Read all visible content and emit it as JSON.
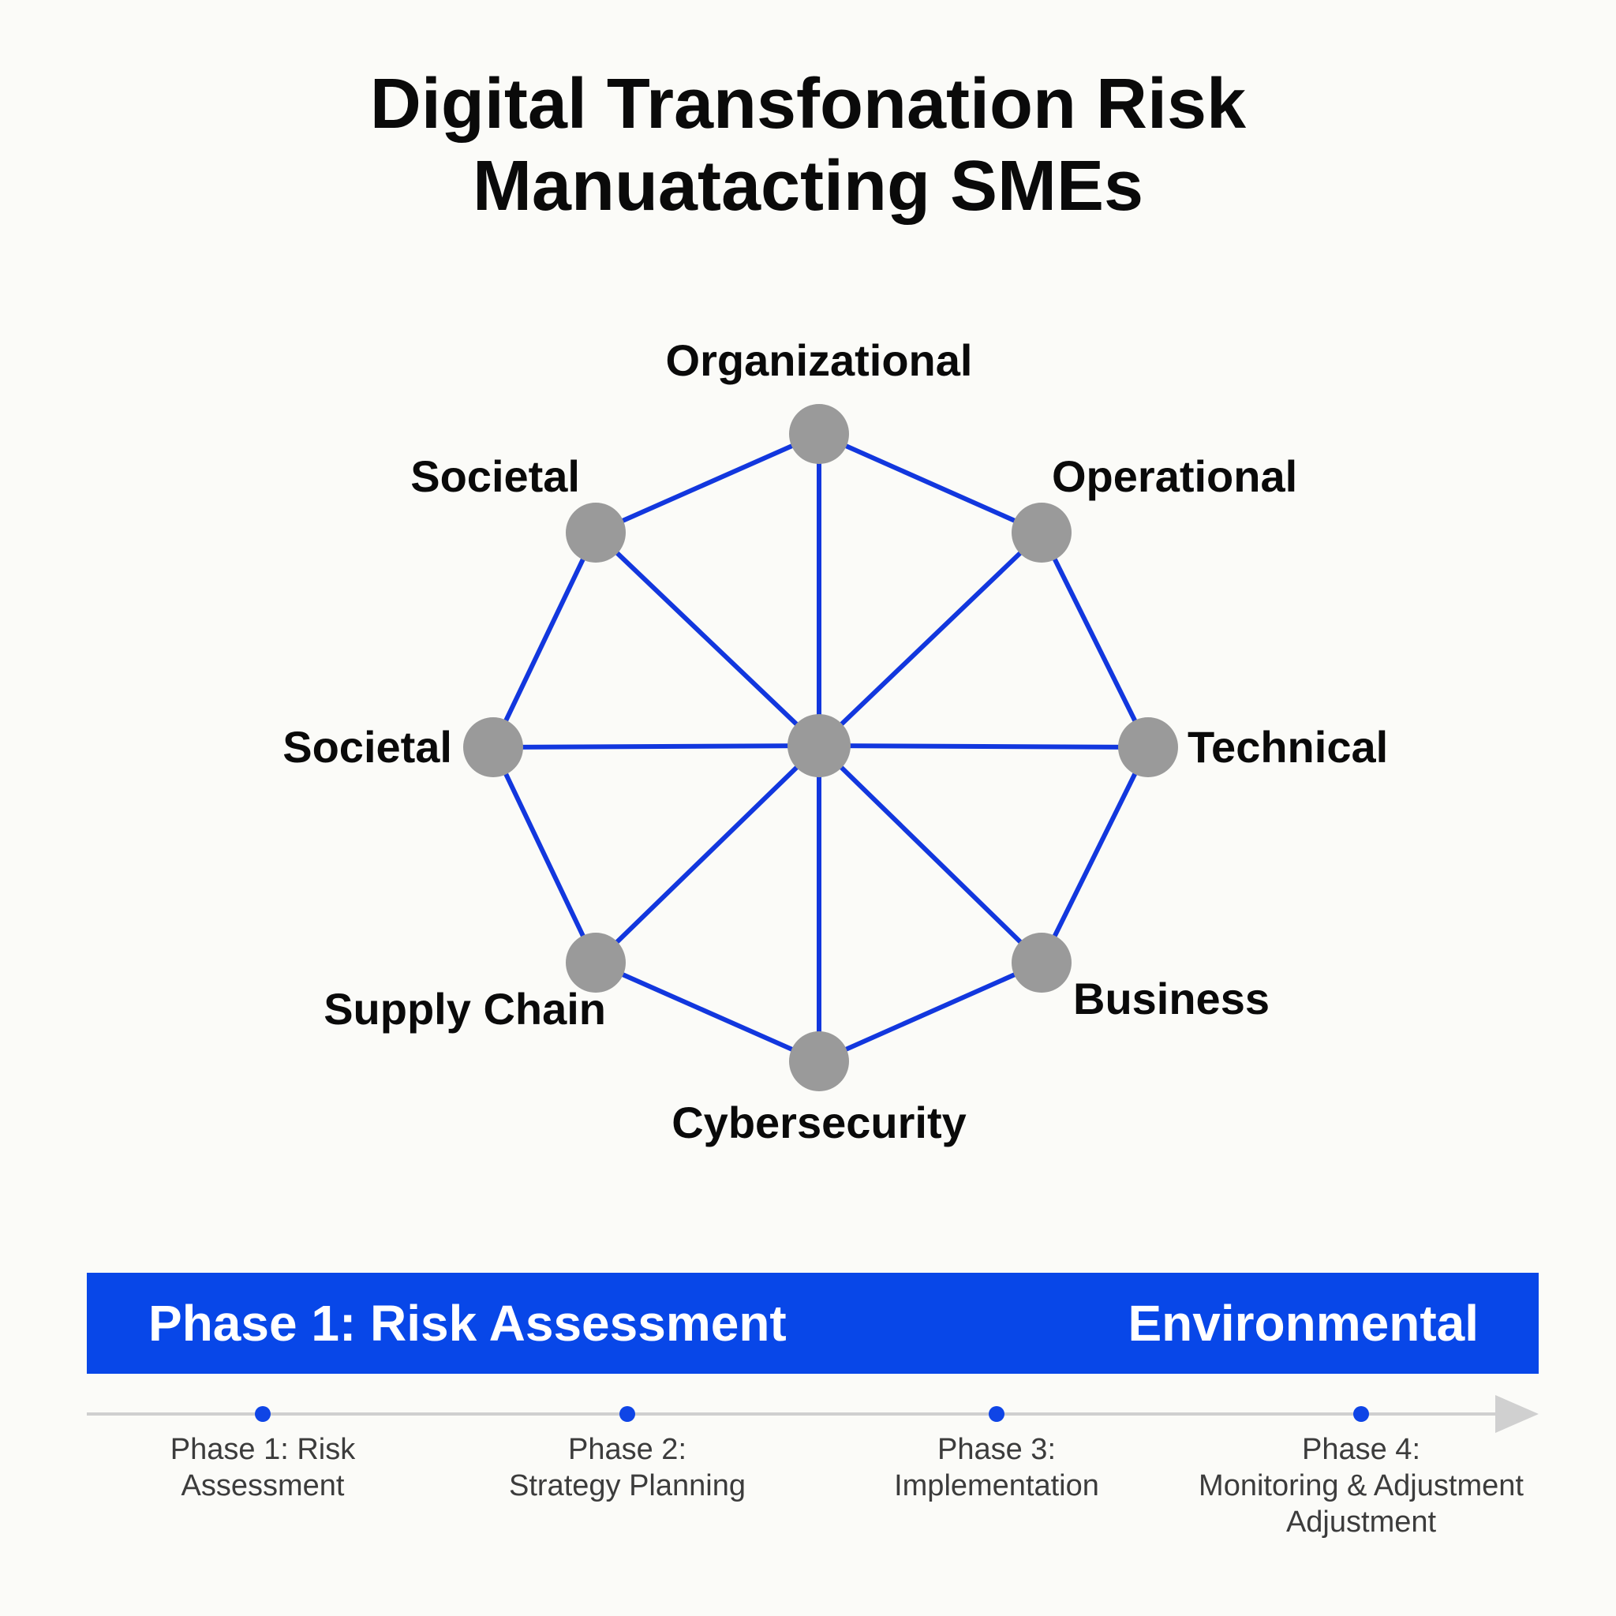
{
  "title": {
    "line1": "Digital Transfonation Risk",
    "line2": "Manuatacting SMEs"
  },
  "diagram": {
    "nodes": [
      {
        "id": "organizational",
        "label": "Organizational"
      },
      {
        "id": "operational",
        "label": "Operational"
      },
      {
        "id": "technical",
        "label": "Technical"
      },
      {
        "id": "business",
        "label": "Business"
      },
      {
        "id": "cybersecurity",
        "label": "Cybersecurity"
      },
      {
        "id": "supply-chain",
        "label": "Supply Chain"
      },
      {
        "id": "societal-left",
        "label": "Societal"
      },
      {
        "id": "societal-top",
        "label": "Societal"
      }
    ],
    "colors": {
      "edge": "#1237de",
      "node": "#9a9a9a"
    }
  },
  "banner": {
    "left_text": "Phase 1: Risk Assessment",
    "right_text": "Environmental",
    "color": "#0847e8"
  },
  "timeline": {
    "phases": [
      {
        "lines": [
          "Phase 1: Risk",
          "Assessment"
        ]
      },
      {
        "lines": [
          "Phase 2:",
          "Strategy Planning"
        ]
      },
      {
        "lines": [
          "Phase 3:",
          "Implementation"
        ]
      },
      {
        "lines": [
          "Phase 4:",
          "Monitoring & Adjustment",
          "Adjustment"
        ]
      }
    ],
    "colors": {
      "dot": "#0f45e6",
      "line": "#cfcfcf",
      "arrow": "#d0d0d0"
    }
  }
}
